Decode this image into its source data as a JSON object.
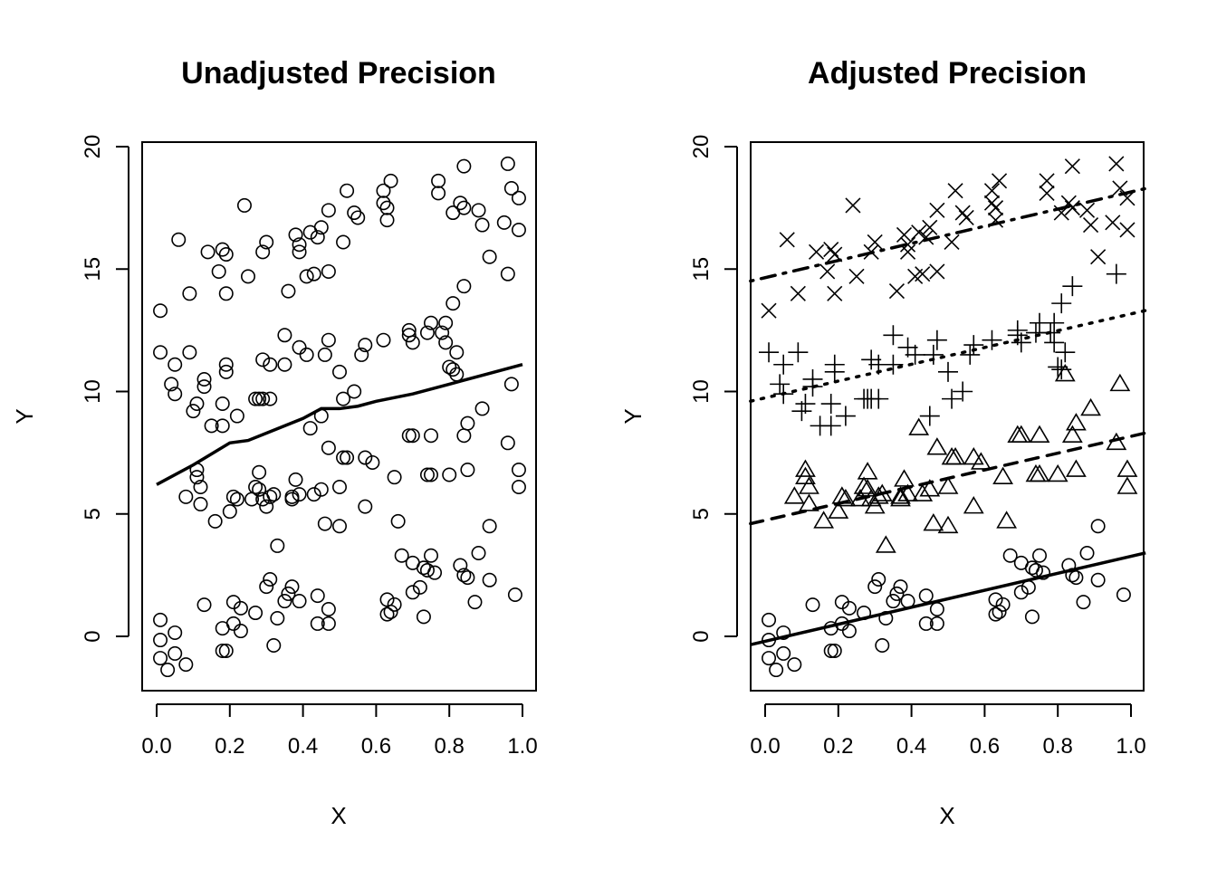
{
  "chart_data": [
    {
      "type": "scatter",
      "title": "Unadjusted Precision",
      "xlabel": "X",
      "ylabel": "Y",
      "xlim": [
        -0.04,
        1.04
      ],
      "ylim": [
        -2.2,
        20.2
      ],
      "xticks": [
        "0.0",
        "0.2",
        "0.4",
        "0.6",
        "0.8",
        "1.0"
      ],
      "yticks": [
        "0",
        "5",
        "10",
        "15",
        "20"
      ],
      "grid": false,
      "marker": "circle",
      "smooth_line": {
        "style": "solid",
        "x": [
          0,
          0.1,
          0.2,
          0.25,
          0.3,
          0.4,
          0.45,
          0.5,
          0.55,
          0.6,
          0.7,
          0.8,
          0.9,
          1.0
        ],
        "y": [
          6.2,
          7.0,
          7.9,
          8.0,
          8.3,
          8.9,
          9.3,
          9.3,
          9.4,
          9.6,
          9.9,
          10.3,
          10.7,
          11.1
        ]
      }
    },
    {
      "type": "scatter",
      "title": "Adjusted Precision",
      "xlabel": "X",
      "ylabel": "Y",
      "xlim": [
        -0.04,
        1.04
      ],
      "ylim": [
        -2.2,
        20.2
      ],
      "xticks": [
        "0.0",
        "0.2",
        "0.4",
        "0.6",
        "0.8",
        "1.0"
      ],
      "yticks": [
        "0",
        "5",
        "10",
        "15",
        "20"
      ],
      "grid": false,
      "fit_lines": [
        {
          "group": "circle",
          "style": "solid",
          "intercept": -0.2,
          "slope": 3.47
        },
        {
          "group": "triangle",
          "style": "dashed",
          "intercept": 4.74,
          "slope": 3.43
        },
        {
          "group": "plus",
          "style": "dotted",
          "intercept": 9.74,
          "slope": 3.43
        },
        {
          "group": "cross",
          "style": "dotdash",
          "intercept": 14.65,
          "slope": 3.5
        }
      ]
    }
  ],
  "series": [
    {
      "name": "circle",
      "points": [
        [
          0.01,
          -0.89
        ],
        [
          0.01,
          0.67
        ],
        [
          0.01,
          -0.15
        ],
        [
          0.03,
          -1.37
        ],
        [
          0.05,
          0.15
        ],
        [
          0.05,
          -0.7
        ],
        [
          0.08,
          -1.15
        ],
        [
          0.13,
          1.29
        ],
        [
          0.18,
          -0.59
        ],
        [
          0.18,
          0.33
        ],
        [
          0.19,
          -0.59
        ],
        [
          0.21,
          1.4
        ],
        [
          0.21,
          0.52
        ],
        [
          0.23,
          1.15
        ],
        [
          0.23,
          0.22
        ],
        [
          0.27,
          0.96
        ],
        [
          0.3,
          2.03
        ],
        [
          0.31,
          2.33
        ],
        [
          0.32,
          -0.37
        ],
        [
          0.33,
          0.74
        ],
        [
          0.35,
          1.44
        ],
        [
          0.37,
          2.03
        ],
        [
          0.36,
          1.74
        ],
        [
          0.39,
          1.44
        ],
        [
          0.44,
          1.66
        ],
        [
          0.44,
          0.52
        ],
        [
          0.47,
          1.11
        ],
        [
          0.47,
          0.52
        ],
        [
          0.63,
          1.5
        ],
        [
          0.63,
          0.9
        ],
        [
          0.64,
          1.0
        ],
        [
          0.65,
          1.3
        ],
        [
          0.67,
          3.3
        ],
        [
          0.7,
          3.0
        ],
        [
          0.7,
          1.8
        ],
        [
          0.72,
          2.0
        ],
        [
          0.73,
          0.8
        ],
        [
          0.73,
          2.8
        ],
        [
          0.74,
          2.7
        ],
        [
          0.75,
          3.3
        ],
        [
          0.76,
          2.6
        ],
        [
          0.83,
          2.9
        ],
        [
          0.84,
          2.5
        ],
        [
          0.85,
          2.4
        ],
        [
          0.87,
          1.4
        ],
        [
          0.88,
          3.4
        ],
        [
          0.91,
          2.3
        ],
        [
          0.91,
          4.5
        ],
        [
          0.98,
          1.7
        ]
      ]
    },
    {
      "name": "triangle",
      "points": [
        [
          0.11,
          6.8
        ],
        [
          0.11,
          6.5
        ],
        [
          0.12,
          6.1
        ],
        [
          0.08,
          5.7
        ],
        [
          0.12,
          5.4
        ],
        [
          0.16,
          4.7
        ],
        [
          0.2,
          5.1
        ],
        [
          0.21,
          5.7
        ],
        [
          0.22,
          5.6
        ],
        [
          0.28,
          6.7
        ],
        [
          0.27,
          6.1
        ],
        [
          0.28,
          6.0
        ],
        [
          0.26,
          5.6
        ],
        [
          0.29,
          5.6
        ],
        [
          0.3,
          5.3
        ],
        [
          0.31,
          5.7
        ],
        [
          0.32,
          5.8
        ],
        [
          0.33,
          3.7
        ],
        [
          0.37,
          5.7
        ],
        [
          0.37,
          5.6
        ],
        [
          0.38,
          6.4
        ],
        [
          0.39,
          5.8
        ],
        [
          0.42,
          8.5
        ],
        [
          0.43,
          5.8
        ],
        [
          0.45,
          6.0
        ],
        [
          0.46,
          4.6
        ],
        [
          0.47,
          7.7
        ],
        [
          0.5,
          4.5
        ],
        [
          0.5,
          6.1
        ],
        [
          0.51,
          7.3
        ],
        [
          0.52,
          7.3
        ],
        [
          0.57,
          7.3
        ],
        [
          0.57,
          5.3
        ],
        [
          0.59,
          7.1
        ],
        [
          0.65,
          6.5
        ],
        [
          0.66,
          4.7
        ],
        [
          0.69,
          8.2
        ],
        [
          0.7,
          8.2
        ],
        [
          0.75,
          8.2
        ],
        [
          0.74,
          6.6
        ],
        [
          0.75,
          6.6
        ],
        [
          0.8,
          6.6
        ],
        [
          0.84,
          8.2
        ],
        [
          0.85,
          6.8
        ],
        [
          0.85,
          8.7
        ],
        [
          0.89,
          9.3
        ],
        [
          0.96,
          7.9
        ],
        [
          0.97,
          10.3
        ],
        [
          0.99,
          6.8
        ],
        [
          0.99,
          6.1
        ],
        [
          0.82,
          10.7
        ]
      ]
    },
    {
      "name": "plus",
      "points": [
        [
          0.01,
          11.6
        ],
        [
          0.05,
          11.1
        ],
        [
          0.04,
          10.3
        ],
        [
          0.05,
          9.9
        ],
        [
          0.09,
          11.6
        ],
        [
          0.13,
          10.2
        ],
        [
          0.13,
          10.5
        ],
        [
          0.11,
          9.5
        ],
        [
          0.1,
          9.2
        ],
        [
          0.15,
          8.6
        ],
        [
          0.18,
          8.6
        ],
        [
          0.19,
          11.1
        ],
        [
          0.19,
          10.8
        ],
        [
          0.18,
          9.5
        ],
        [
          0.22,
          9.0
        ],
        [
          0.27,
          9.7
        ],
        [
          0.28,
          9.7
        ],
        [
          0.29,
          9.7
        ],
        [
          0.31,
          9.7
        ],
        [
          0.29,
          11.3
        ],
        [
          0.31,
          11.1
        ],
        [
          0.35,
          11.1
        ],
        [
          0.35,
          12.3
        ],
        [
          0.39,
          11.8
        ],
        [
          0.41,
          11.5
        ],
        [
          0.45,
          9.0
        ],
        [
          0.47,
          12.1
        ],
        [
          0.46,
          11.5
        ],
        [
          0.5,
          10.8
        ],
        [
          0.51,
          9.7
        ],
        [
          0.54,
          10.0
        ],
        [
          0.57,
          11.9
        ],
        [
          0.56,
          11.5
        ],
        [
          0.62,
          12.1
        ],
        [
          0.69,
          12.5
        ],
        [
          0.7,
          12.0
        ],
        [
          0.69,
          12.3
        ],
        [
          0.75,
          12.8
        ],
        [
          0.79,
          12.0
        ],
        [
          0.8,
          11.0
        ],
        [
          0.81,
          10.9
        ],
        [
          0.81,
          13.6
        ],
        [
          0.84,
          14.3
        ],
        [
          0.82,
          11.6
        ],
        [
          0.79,
          12.8
        ],
        [
          0.96,
          14.8
        ],
        [
          0.78,
          12.4
        ],
        [
          0.74,
          12.4
        ]
      ]
    },
    {
      "name": "cross",
      "points": [
        [
          0.01,
          13.3
        ],
        [
          0.06,
          16.2
        ],
        [
          0.09,
          14.0
        ],
        [
          0.19,
          14.0
        ],
        [
          0.14,
          15.7
        ],
        [
          0.18,
          15.8
        ],
        [
          0.19,
          15.6
        ],
        [
          0.17,
          14.9
        ],
        [
          0.24,
          17.6
        ],
        [
          0.25,
          14.7
        ],
        [
          0.29,
          15.7
        ],
        [
          0.3,
          16.1
        ],
        [
          0.36,
          14.1
        ],
        [
          0.38,
          16.4
        ],
        [
          0.39,
          15.7
        ],
        [
          0.39,
          16.0
        ],
        [
          0.41,
          14.7
        ],
        [
          0.43,
          14.8
        ],
        [
          0.42,
          16.5
        ],
        [
          0.44,
          16.3
        ],
        [
          0.45,
          16.7
        ],
        [
          0.47,
          14.9
        ],
        [
          0.47,
          17.4
        ],
        [
          0.52,
          18.2
        ],
        [
          0.51,
          16.1
        ],
        [
          0.54,
          17.3
        ],
        [
          0.55,
          17.1
        ],
        [
          0.62,
          18.2
        ],
        [
          0.62,
          17.7
        ],
        [
          0.63,
          17.5
        ],
        [
          0.64,
          18.6
        ],
        [
          0.63,
          17.0
        ],
        [
          0.77,
          18.6
        ],
        [
          0.77,
          18.1
        ],
        [
          0.84,
          19.2
        ],
        [
          0.81,
          17.3
        ],
        [
          0.83,
          17.7
        ],
        [
          0.84,
          17.5
        ],
        [
          0.88,
          17.4
        ],
        [
          0.89,
          16.8
        ],
        [
          0.91,
          15.5
        ],
        [
          0.96,
          19.3
        ],
        [
          0.97,
          18.3
        ],
        [
          0.95,
          16.9
        ],
        [
          0.99,
          17.9
        ],
        [
          0.99,
          16.6
        ]
      ]
    }
  ]
}
